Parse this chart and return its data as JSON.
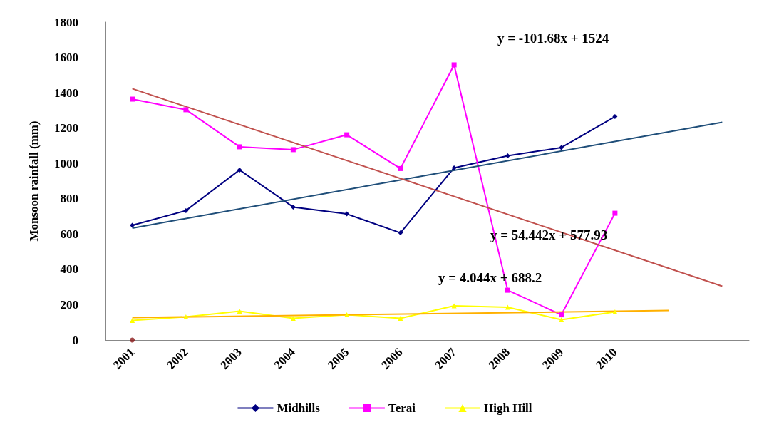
{
  "chart_data": {
    "type": "line",
    "ylabel": "Monsoon rainfall (mm)",
    "categories": [
      "2001",
      "2002",
      "2003",
      "2004",
      "2005",
      "2006",
      "2007",
      "2008",
      "2009",
      "2010",
      null,
      null
    ],
    "ylim": [
      0,
      1800
    ],
    "yticks": [
      0,
      200,
      400,
      600,
      800,
      1000,
      1200,
      1400,
      1600,
      1800
    ],
    "grid": false,
    "legend": "bottom",
    "series": [
      {
        "name": "Midhills",
        "color": "#000080",
        "marker": "diamond",
        "values": [
          650,
          733,
          963,
          753,
          714,
          607,
          975,
          1043,
          1090,
          1265,
          null,
          null
        ]
      },
      {
        "name": "Terai",
        "color": "#ff00ff",
        "marker": "square",
        "values": [
          1364,
          1304,
          1094,
          1078,
          1162,
          971,
          1558,
          282,
          143,
          718,
          null,
          null
        ]
      },
      {
        "name": "High Hill",
        "color": "#ffff00",
        "marker": "triangle",
        "values": [
          111,
          131,
          163,
          123,
          143,
          123,
          194,
          186,
          115,
          159,
          null,
          null
        ]
      },
      {
        "type": "line",
        "color": "#1f4e79",
        "marker": "none",
        "values": [
          634,
          null,
          null,
          null,
          null,
          null,
          null,
          null,
          null,
          null,
          null,
          1233
        ]
      },
      {
        "type": "line",
        "color": "#c0504d",
        "marker": "none",
        "values": [
          1423,
          null,
          null,
          null,
          null,
          null,
          null,
          null,
          null,
          null,
          null,
          305
        ]
      },
      {
        "type": "line",
        "color": "#ffb000",
        "marker": "none",
        "values": [
          127,
          null,
          null,
          null,
          null,
          null,
          null,
          null,
          null,
          null,
          167,
          null
        ]
      },
      {
        "type": "scatter",
        "color": "#8b1a1a",
        "marker": "circle",
        "values": [
          0,
          null,
          null,
          null,
          null,
          null,
          null,
          null,
          null,
          null,
          null,
          null
        ]
      }
    ],
    "annotations": [
      "y = -101.68x + 1524",
      "y = 54.442x + 577.93",
      "y = 4.044x + 688.2"
    ]
  }
}
